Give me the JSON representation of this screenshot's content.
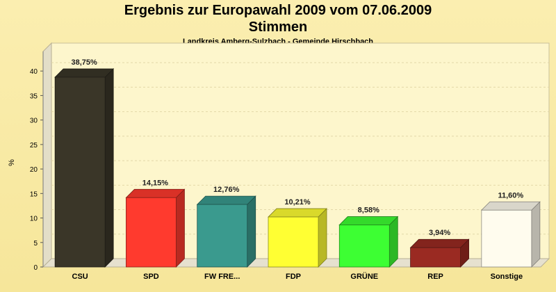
{
  "chart_data": {
    "type": "bar",
    "title": "Ergebnis zur Europawahl 2009 vom 07.06.2009",
    "title_line2": "Stimmen",
    "subtitle": "Landkreis Amberg-Sulzbach - Gemeinde Hirschbach",
    "ylabel": "%",
    "xlabel": "",
    "ylim": [
      0,
      40
    ],
    "yticks": [
      0,
      5,
      10,
      15,
      20,
      25,
      30,
      35,
      40
    ],
    "grid": true,
    "categories": [
      "CSU",
      "SPD",
      "FW FRE...",
      "FDP",
      "GRÜNE",
      "REP",
      "Sonstige"
    ],
    "values": [
      38.75,
      14.15,
      12.76,
      10.21,
      8.58,
      3.94,
      11.6
    ],
    "value_labels": [
      "38,75%",
      "14,15%",
      "12,76%",
      "10,21%",
      "8,58%",
      "3,94%",
      "11,60%"
    ],
    "colors": [
      "#3a3628",
      "#ff3a2e",
      "#3a9a8e",
      "#ffff33",
      "#3dff33",
      "#9a2a22",
      "#fffcee"
    ]
  }
}
